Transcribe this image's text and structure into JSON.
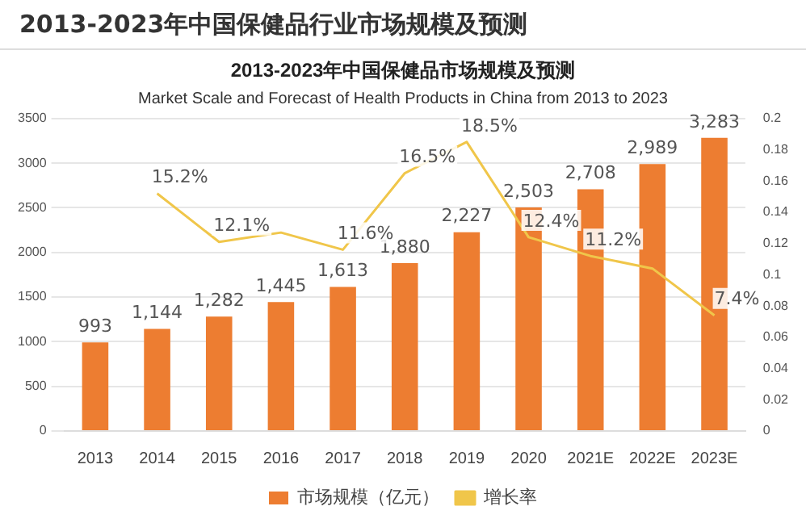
{
  "chart_data": {
    "type": "bar",
    "title": "2013-2023年中国保健品市场规模及预测",
    "subtitle": "Market Scale and Forecast of Health Products in China from 2013 to 2023",
    "annotations": [
      "2013-2023年中国保健品行业市场规模及预测"
    ],
    "categories": [
      "2013",
      "2014",
      "2015",
      "2016",
      "2017",
      "2018",
      "2019",
      "2020",
      "2021E",
      "2022E",
      "2023E"
    ],
    "series": [
      {
        "name": "市场规模（亿元）",
        "color": "#ed7d31",
        "values": [
          993,
          1144,
          1282,
          1445,
          1613,
          1880,
          2227,
          2503,
          2708,
          2989,
          3283
        ],
        "value_labels": [
          "993",
          "1,144",
          "1,282",
          "1,445",
          "1,613",
          "1,880",
          "2,227",
          "2,503",
          "2,708",
          "2,989",
          "3,283"
        ]
      },
      {
        "name": "增长率",
        "type": "line",
        "axis": "y2",
        "color": "#f0c64a",
        "values": [
          null,
          0.152,
          0.121,
          0.127,
          0.116,
          0.165,
          0.185,
          0.124,
          0.112,
          0.104,
          0.074
        ],
        "value_labels": [
          null,
          "15.2%",
          "12.1%",
          null,
          "11.6%",
          "16.5%",
          "18.5%",
          "12.4%",
          "11.2%",
          null,
          "7.4%"
        ]
      }
    ],
    "ylim": [
      0,
      3500
    ],
    "yticks": [
      0,
      500,
      1000,
      1500,
      2000,
      2500,
      3000,
      3500
    ],
    "y2lim": [
      0,
      0.2
    ],
    "y2ticks": [
      0,
      0.02,
      0.04,
      0.06,
      0.08,
      0.1,
      0.12,
      0.14,
      0.16,
      0.18,
      0.2
    ],
    "grid": "y",
    "legend": "bottom",
    "marker": "none"
  }
}
